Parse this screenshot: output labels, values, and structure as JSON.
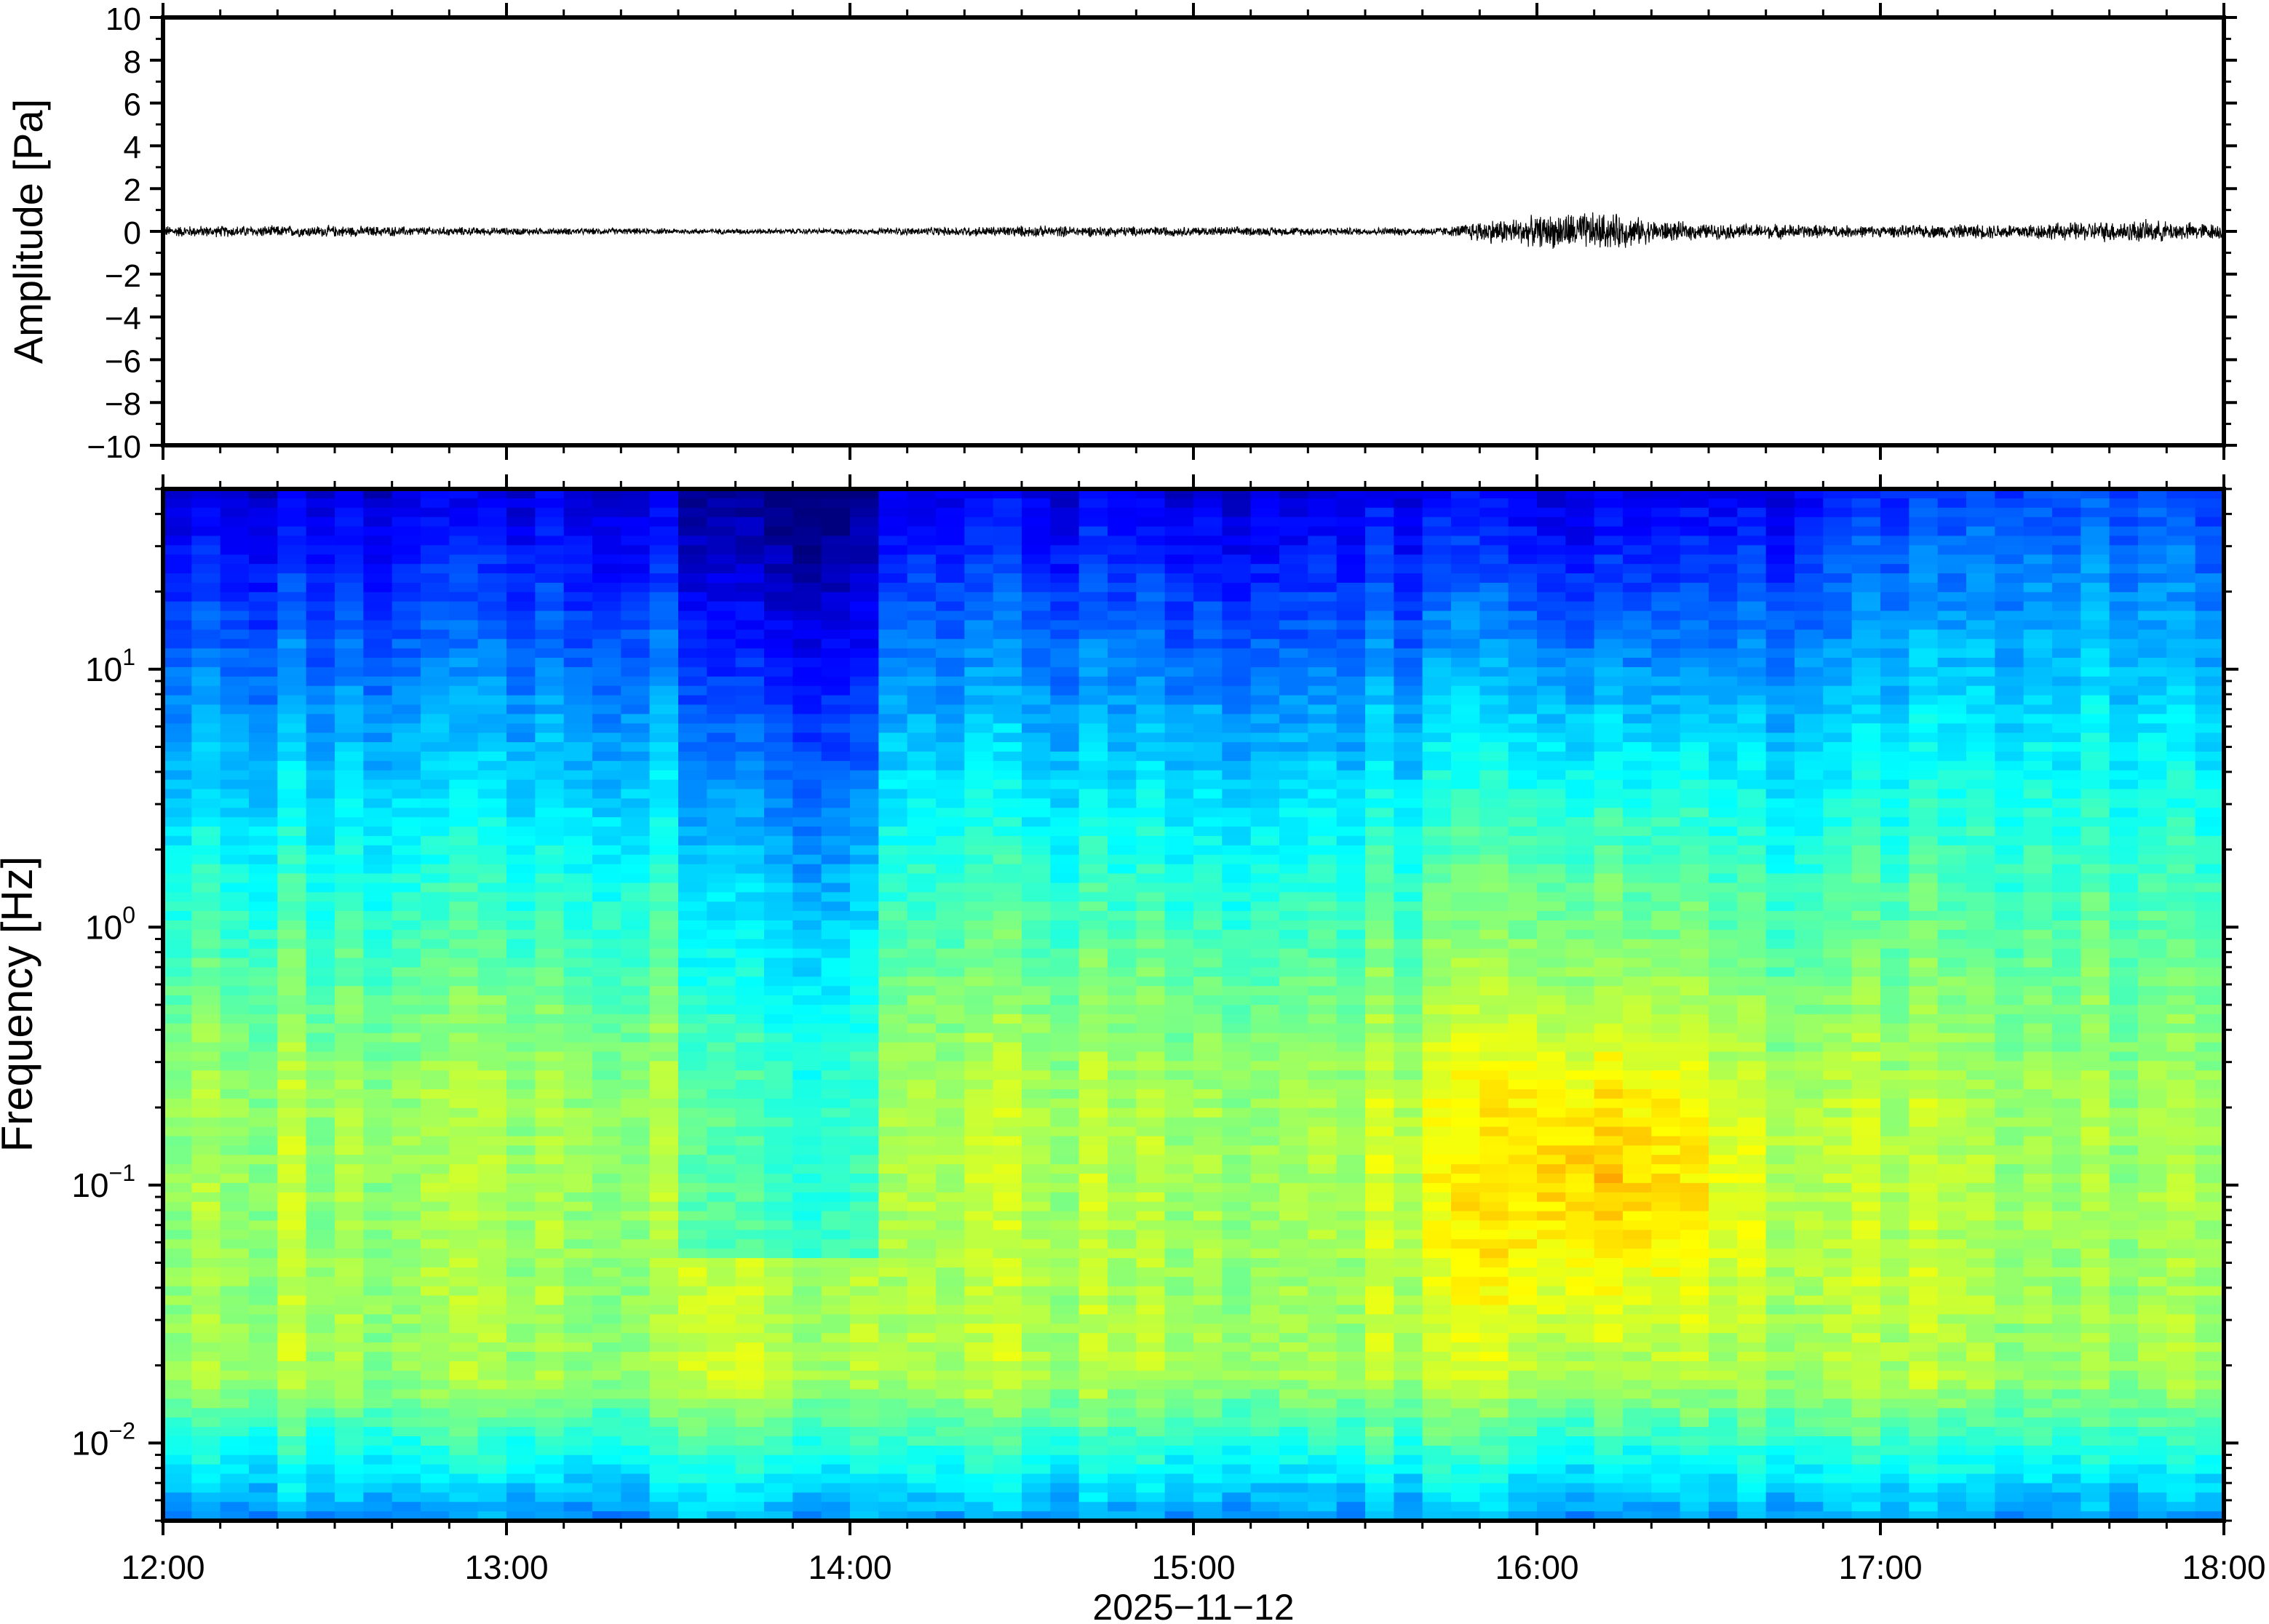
{
  "chart_data": [
    {
      "type": "line",
      "ylabel": "Amplitude [Pa]",
      "ylim": [
        -10,
        10
      ],
      "yticks": [
        "10",
        "8",
        "6",
        "4",
        "2",
        "0",
        "−2",
        "−4",
        "−6",
        "−8",
        "−10"
      ],
      "xlim": [
        "12:00",
        "18:00"
      ],
      "series": [
        {
          "x": [
            "12:00",
            "12:30",
            "13:00",
            "13:30",
            "14:00",
            "14:30",
            "15:00",
            "15:30",
            "15:45",
            "15:50",
            "16:00",
            "16:05",
            "16:10",
            "16:15",
            "16:20",
            "16:30",
            "16:40",
            "17:00",
            "17:30",
            "17:45",
            "18:00"
          ],
          "y_envelope": [
            0.3,
            0.3,
            0.2,
            0.15,
            0.15,
            0.3,
            0.25,
            0.2,
            0.25,
            0.6,
            0.8,
            1.0,
            1.0,
            0.9,
            0.6,
            0.4,
            0.4,
            0.3,
            0.45,
            0.6,
            0.4
          ]
        }
      ],
      "grid": false
    },
    {
      "type": "heatmap",
      "ylabel": "Frequency [Hz]",
      "xlabel": "2025−11−12",
      "yscale": "log",
      "ylim": [
        0.005,
        50
      ],
      "yticks": [
        {
          "base": "10",
          "exp": "1",
          "value": 10
        },
        {
          "base": "10",
          "exp": "0",
          "value": 1
        },
        {
          "base": "10",
          "exp": "−1",
          "value": 0.1
        },
        {
          "base": "10",
          "exp": "−2",
          "value": 0.01
        }
      ],
      "xticks": [
        "12:00",
        "13:00",
        "14:00",
        "15:00",
        "16:00",
        "17:00",
        "18:00"
      ],
      "colormap": "jet",
      "colors": [
        "#00007f",
        "#0000ff",
        "#007fff",
        "#00ffff",
        "#7fff7f",
        "#ffff00",
        "#ff7f00",
        "#ff0000"
      ],
      "hot_spot": {
        "time": "16:10",
        "frequency_hz": [
          0.03,
          0.3
        ]
      },
      "quiet_period": {
        "time": [
          "13:30",
          "14:05"
        ]
      },
      "grid": false
    }
  ]
}
